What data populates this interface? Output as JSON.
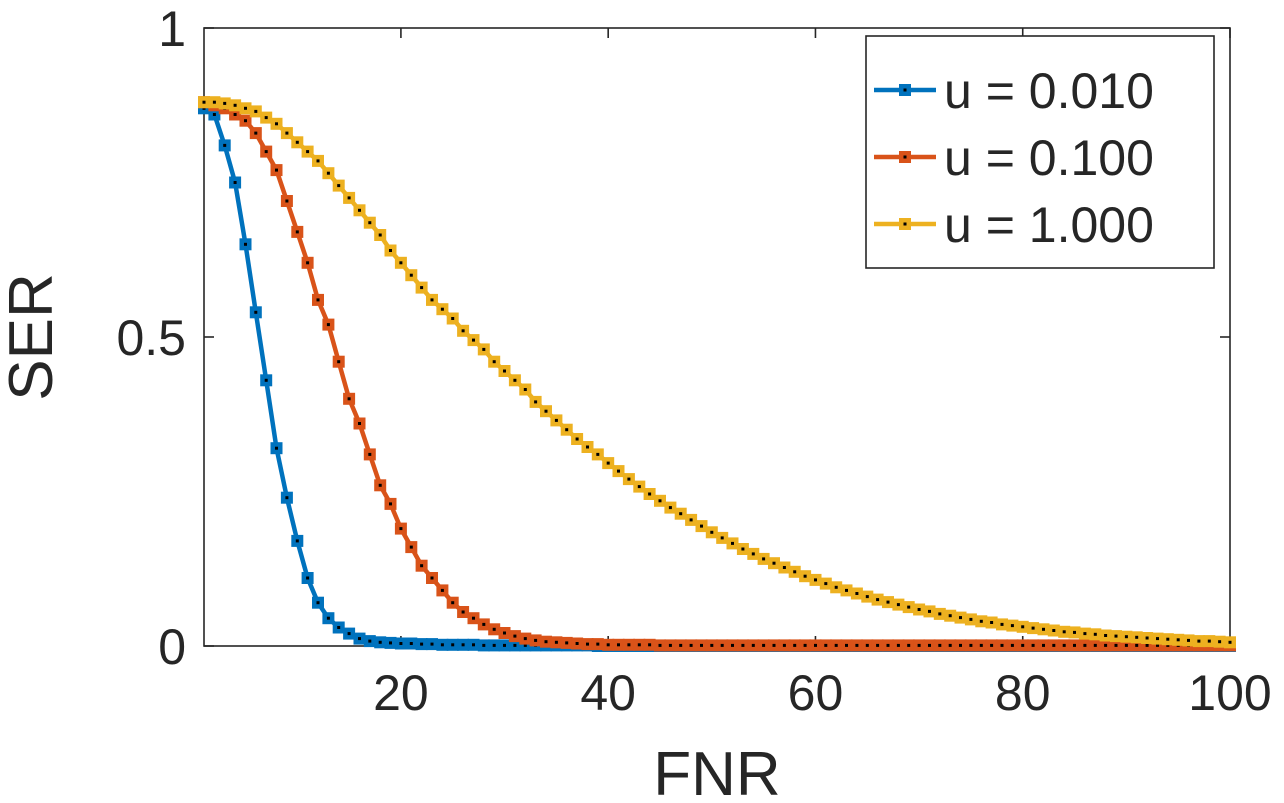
{
  "chart_data": {
    "type": "line",
    "xlabel": "FNR",
    "ylabel": "SER",
    "xlim": [
      1,
      100
    ],
    "ylim": [
      0,
      1
    ],
    "x_ticks": [
      20,
      40,
      60,
      80,
      100
    ],
    "x_tick_labels": [
      "20",
      "40",
      "60",
      "80",
      "100"
    ],
    "y_ticks": [
      0,
      0.5,
      1
    ],
    "y_tick_labels": [
      "0",
      "0.5",
      "1"
    ],
    "grid": false,
    "legend_position": "top-right",
    "x": [
      1,
      2,
      3,
      4,
      5,
      6,
      7,
      8,
      9,
      10,
      11,
      12,
      13,
      14,
      15,
      16,
      17,
      18,
      19,
      20,
      21,
      22,
      23,
      24,
      25,
      26,
      27,
      28,
      29,
      30,
      31,
      32,
      33,
      34,
      35,
      36,
      37,
      38,
      39,
      40,
      41,
      42,
      43,
      44,
      45,
      46,
      47,
      48,
      49,
      50,
      51,
      52,
      53,
      54,
      55,
      56,
      57,
      58,
      59,
      60,
      61,
      62,
      63,
      64,
      65,
      66,
      67,
      68,
      69,
      70,
      71,
      72,
      73,
      74,
      75,
      76,
      77,
      78,
      79,
      80,
      81,
      82,
      83,
      84,
      85,
      86,
      87,
      88,
      89,
      90,
      91,
      92,
      93,
      94,
      95,
      96,
      97,
      98,
      99,
      100
    ],
    "series": [
      {
        "name": "u = 0.010",
        "color": "#0072BD",
        "values": [
          0.87,
          0.86,
          0.81,
          0.75,
          0.65,
          0.54,
          0.43,
          0.32,
          0.24,
          0.17,
          0.11,
          0.07,
          0.045,
          0.03,
          0.02,
          0.012,
          0.008,
          0.006,
          0.005,
          0.004,
          0.004,
          0.003,
          0.003,
          0.002,
          0.002,
          0.002,
          0.002,
          0.001,
          0.001,
          0.001,
          0.001,
          0.001,
          0.001,
          0.001,
          0.001,
          0.001,
          0.001,
          0.001,
          0,
          0,
          0,
          0,
          0,
          0,
          0,
          0,
          0,
          0,
          0,
          0,
          0,
          0,
          0,
          0,
          0,
          0,
          0,
          0,
          0,
          0,
          0,
          0,
          0,
          0,
          0,
          0,
          0,
          0,
          0,
          0,
          0,
          0,
          0,
          0,
          0,
          0,
          0,
          0,
          0,
          0,
          0,
          0,
          0,
          0,
          0,
          0,
          0,
          0,
          0,
          0,
          0,
          0,
          0,
          0,
          0,
          0,
          0,
          0,
          0,
          0
        ]
      },
      {
        "name": "u = 0.100",
        "color": "#D95319",
        "values": [
          0.88,
          0.875,
          0.87,
          0.86,
          0.85,
          0.83,
          0.8,
          0.77,
          0.72,
          0.67,
          0.62,
          0.56,
          0.52,
          0.46,
          0.4,
          0.36,
          0.31,
          0.26,
          0.23,
          0.19,
          0.16,
          0.13,
          0.11,
          0.09,
          0.07,
          0.055,
          0.045,
          0.035,
          0.027,
          0.021,
          0.016,
          0.012,
          0.009,
          0.007,
          0.006,
          0.005,
          0.004,
          0.003,
          0.003,
          0.002,
          0.002,
          0.002,
          0.002,
          0.002,
          0.001,
          0.001,
          0.001,
          0.001,
          0.001,
          0.001,
          0.001,
          0.001,
          0.001,
          0.001,
          0.001,
          0.001,
          0.001,
          0.001,
          0.001,
          0.001,
          0.001,
          0.001,
          0.001,
          0.001,
          0.001,
          0.001,
          0.001,
          0.001,
          0.001,
          0.001,
          0.001,
          0.001,
          0.001,
          0.001,
          0.001,
          0.001,
          0.001,
          0.001,
          0.001,
          0.001,
          0.001,
          0.001,
          0.001,
          0.001,
          0.001,
          0.001,
          0.001,
          0.001,
          0.001,
          0.001,
          0.001,
          0.001,
          0.001,
          0.001,
          0.001,
          0.001,
          0.001,
          0.001,
          0.001,
          0.001
        ]
      },
      {
        "name": "u = 1.000",
        "color": "#EDB120",
        "values": [
          0.88,
          0.88,
          0.878,
          0.875,
          0.87,
          0.865,
          0.855,
          0.845,
          0.83,
          0.815,
          0.8,
          0.785,
          0.765,
          0.745,
          0.725,
          0.705,
          0.685,
          0.665,
          0.64,
          0.62,
          0.6,
          0.58,
          0.56,
          0.545,
          0.53,
          0.51,
          0.495,
          0.48,
          0.46,
          0.445,
          0.43,
          0.415,
          0.395,
          0.38,
          0.365,
          0.35,
          0.335,
          0.322,
          0.31,
          0.296,
          0.283,
          0.27,
          0.258,
          0.246,
          0.235,
          0.224,
          0.214,
          0.204,
          0.194,
          0.184,
          0.175,
          0.166,
          0.157,
          0.149,
          0.141,
          0.134,
          0.127,
          0.12,
          0.113,
          0.107,
          0.101,
          0.095,
          0.09,
          0.085,
          0.08,
          0.075,
          0.071,
          0.067,
          0.063,
          0.059,
          0.056,
          0.052,
          0.049,
          0.046,
          0.043,
          0.04,
          0.038,
          0.035,
          0.033,
          0.031,
          0.029,
          0.027,
          0.025,
          0.023,
          0.022,
          0.02,
          0.019,
          0.017,
          0.016,
          0.015,
          0.014,
          0.013,
          0.012,
          0.011,
          0.01,
          0.009,
          0.008,
          0.008,
          0.007,
          0.006
        ]
      }
    ]
  }
}
